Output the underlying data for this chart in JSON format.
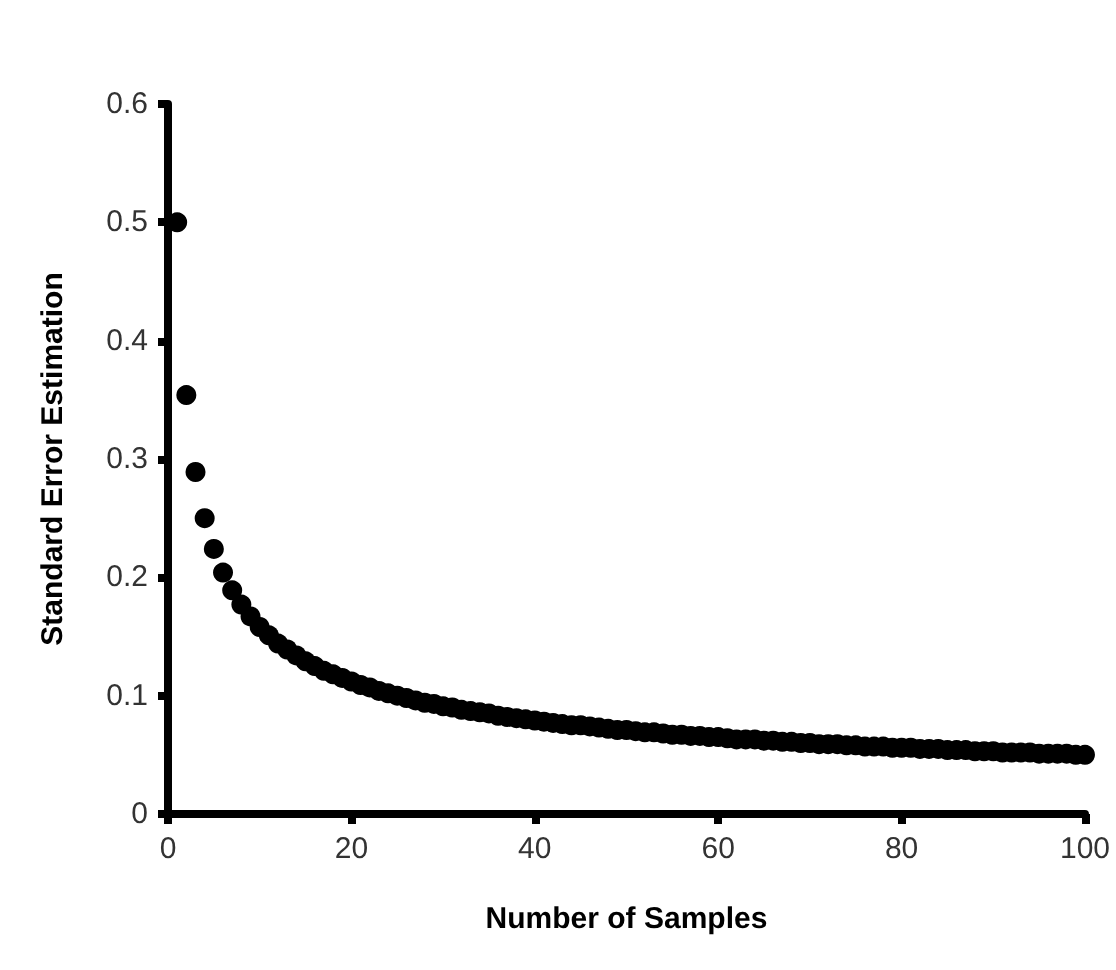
{
  "chart_data": {
    "type": "scatter",
    "xlabel": "Number of Samples",
    "ylabel": "Standard Error Estimation",
    "x": [
      1,
      2,
      3,
      4,
      5,
      6,
      7,
      8,
      9,
      10,
      11,
      12,
      13,
      14,
      15,
      16,
      17,
      18,
      19,
      20,
      21,
      22,
      23,
      24,
      25,
      26,
      27,
      28,
      29,
      30,
      31,
      32,
      33,
      34,
      35,
      36,
      37,
      38,
      39,
      40,
      41,
      42,
      43,
      44,
      45,
      46,
      47,
      48,
      49,
      50,
      51,
      52,
      53,
      54,
      55,
      56,
      57,
      58,
      59,
      60,
      61,
      62,
      63,
      64,
      65,
      66,
      67,
      68,
      69,
      70,
      71,
      72,
      73,
      74,
      75,
      76,
      77,
      78,
      79,
      80,
      81,
      82,
      83,
      84,
      85,
      86,
      87,
      88,
      89,
      90,
      91,
      92,
      93,
      94,
      95,
      96,
      97,
      98,
      99,
      100
    ],
    "series": [
      {
        "color": "#000000",
        "values": [
          0.5,
          0.354,
          0.289,
          0.25,
          0.224,
          0.204,
          0.189,
          0.177,
          0.167,
          0.158,
          0.151,
          0.144,
          0.139,
          0.134,
          0.129,
          0.125,
          0.121,
          0.118,
          0.115,
          0.112,
          0.109,
          0.107,
          0.104,
          0.102,
          0.1,
          0.098,
          0.096,
          0.094,
          0.093,
          0.091,
          0.09,
          0.088,
          0.087,
          0.086,
          0.085,
          0.083,
          0.082,
          0.081,
          0.08,
          0.079,
          0.078,
          0.077,
          0.076,
          0.075,
          0.075,
          0.074,
          0.073,
          0.072,
          0.071,
          0.071,
          0.07,
          0.069,
          0.069,
          0.068,
          0.067,
          0.067,
          0.066,
          0.066,
          0.065,
          0.065,
          0.064,
          0.063,
          0.063,
          0.063,
          0.062,
          0.062,
          0.061,
          0.061,
          0.06,
          0.06,
          0.059,
          0.059,
          0.059,
          0.058,
          0.058,
          0.057,
          0.057,
          0.057,
          0.056,
          0.056,
          0.056,
          0.055,
          0.055,
          0.055,
          0.054,
          0.054,
          0.054,
          0.053,
          0.053,
          0.053,
          0.052,
          0.052,
          0.052,
          0.052,
          0.051,
          0.051,
          0.051,
          0.051,
          0.05,
          0.05
        ]
      }
    ],
    "xlim": [
      0,
      100
    ],
    "xticks": [
      0,
      20,
      40,
      60,
      80,
      100
    ],
    "ylim": [
      0,
      0.6
    ],
    "yticks": [
      0,
      0.1,
      0.2,
      0.3,
      0.4,
      0.5,
      0.6
    ],
    "grid": false,
    "marker": "circle"
  }
}
